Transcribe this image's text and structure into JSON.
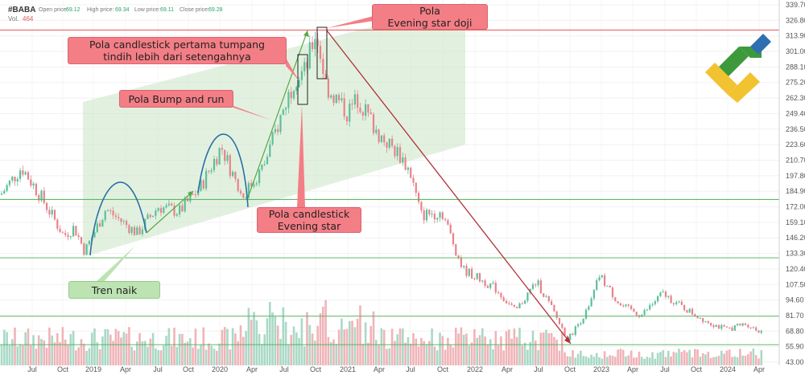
{
  "header": {
    "ticker": "#BABA",
    "open_label": "Open price:",
    "open_value": "69.12",
    "high_label": "High price:",
    "high_value": "69.34",
    "low_label": "Low price:",
    "low_value": "69.11",
    "close_label": "Close price:",
    "close_value": "69.28",
    "vol_label": "Vol.",
    "vol_value": "464"
  },
  "annotations": {
    "evening_star_doji": [
      "Pola",
      "Evening star doji"
    ],
    "first_candle": [
      "Pola candlestick pertama tumpang",
      "tindih lebih dari setengahnya"
    ],
    "bump_and_run": [
      "Pola Bump and run"
    ],
    "evening_star": [
      "Pola candlestick",
      "Evening star"
    ],
    "uptrend": [
      "Tren naik"
    ]
  },
  "colors": {
    "up": "#5cbf9a",
    "down": "#e8828a",
    "vol_up": "#a9d9c6",
    "vol_down": "#f0b4b8",
    "level_green": "#4caf50",
    "level_red": "#e53935",
    "channel": "#cfe8c9",
    "trend_arrow": "#5aa64a",
    "down_arrow": "#b0303a"
  },
  "chart_data": {
    "type": "candlestick",
    "symbol": "#BABA",
    "y_axis_ticks": [
      "339.70",
      "326.80",
      "313.90",
      "301.00",
      "288.10",
      "275.20",
      "262.30",
      "249.40",
      "236.50",
      "223.60",
      "210.70",
      "197.80",
      "184.90",
      "172.00",
      "159.10",
      "146.20",
      "133.30",
      "120.40",
      "107.50",
      "94.60",
      "81.70",
      "68.80",
      "55.90",
      "43.00"
    ],
    "x_axis_ticks": [
      "Jul",
      "Oct",
      "2019",
      "Apr",
      "Jul",
      "Oct",
      "2020",
      "Apr",
      "Jul",
      "Oct",
      "2021",
      "Apr",
      "Jul",
      "Oct",
      "2022",
      "Apr",
      "Jul",
      "Oct",
      "2023",
      "Apr",
      "Jul",
      "Oct",
      "2024",
      "Apr"
    ],
    "ylim": [
      43.0,
      339.7
    ],
    "price_levels": [
      {
        "value": "318.80",
        "color": "red"
      },
      {
        "value": "178.10",
        "color": "green"
      },
      {
        "value": "129.62",
        "color": "green"
      },
      {
        "value": "81.14",
        "color": "green"
      },
      {
        "value": "57.55",
        "color": "green"
      }
    ],
    "price_path": [
      {
        "date": "2018-04",
        "close": 182
      },
      {
        "date": "2018-06",
        "close": 205
      },
      {
        "date": "2018-08",
        "close": 178
      },
      {
        "date": "2018-10",
        "close": 148
      },
      {
        "date": "2018-11",
        "close": 155
      },
      {
        "date": "2018-12",
        "close": 135
      },
      {
        "date": "2019-02",
        "close": 170
      },
      {
        "date": "2019-05",
        "close": 150
      },
      {
        "date": "2019-07",
        "close": 172
      },
      {
        "date": "2019-09",
        "close": 168
      },
      {
        "date": "2019-11",
        "close": 188
      },
      {
        "date": "2020-01",
        "close": 222
      },
      {
        "date": "2020-03",
        "close": 180
      },
      {
        "date": "2020-05",
        "close": 205
      },
      {
        "date": "2020-07",
        "close": 255
      },
      {
        "date": "2020-08",
        "close": 280
      },
      {
        "date": "2020-09",
        "close": 285
      },
      {
        "date": "2020-10",
        "close": 318
      },
      {
        "date": "2020-11",
        "close": 272
      },
      {
        "date": "2021-01",
        "close": 250
      },
      {
        "date": "2021-02",
        "close": 262
      },
      {
        "date": "2021-04",
        "close": 232
      },
      {
        "date": "2021-06",
        "close": 215
      },
      {
        "date": "2021-07",
        "close": 200
      },
      {
        "date": "2021-08",
        "close": 165
      },
      {
        "date": "2021-10",
        "close": 168
      },
      {
        "date": "2021-12",
        "close": 120
      },
      {
        "date": "2022-03",
        "close": 105
      },
      {
        "date": "2022-05",
        "close": 85
      },
      {
        "date": "2022-07",
        "close": 110
      },
      {
        "date": "2022-08",
        "close": 95
      },
      {
        "date": "2022-10",
        "close": 62
      },
      {
        "date": "2022-12",
        "close": 88
      },
      {
        "date": "2023-01",
        "close": 115
      },
      {
        "date": "2023-03",
        "close": 90
      },
      {
        "date": "2023-05",
        "close": 82
      },
      {
        "date": "2023-07",
        "close": 100
      },
      {
        "date": "2023-09",
        "close": 88
      },
      {
        "date": "2023-11",
        "close": 78
      },
      {
        "date": "2024-01",
        "close": 70
      },
      {
        "date": "2024-03",
        "close": 75
      },
      {
        "date": "2024-04",
        "close": 69.28
      }
    ]
  }
}
